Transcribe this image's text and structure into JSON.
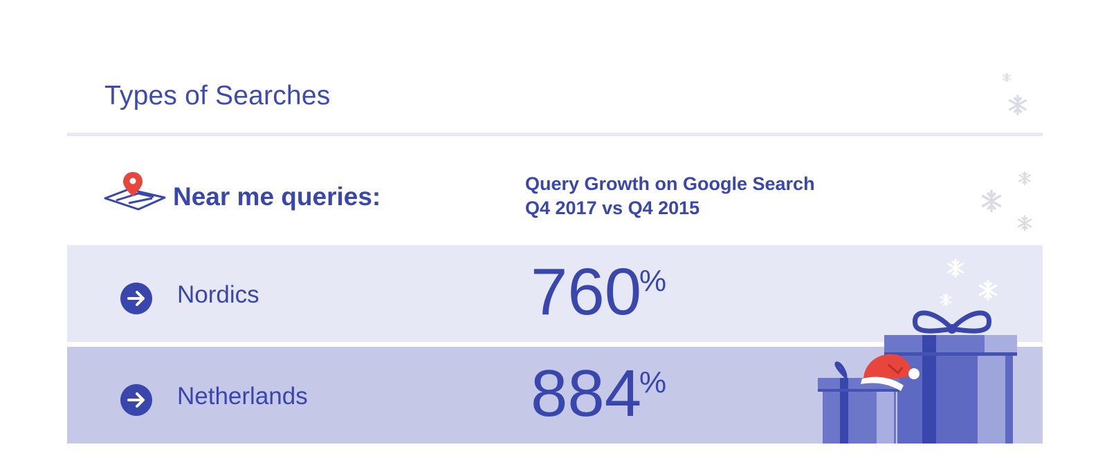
{
  "header": {
    "title": "Types of Searches"
  },
  "section": {
    "label": "Near me queries:",
    "growth_title_line1": "Query Growth on Google Search",
    "growth_title_line2": "Q4 2017 vs Q4 2015"
  },
  "rows": [
    {
      "region": "Nordics",
      "value": "760",
      "unit": "%"
    },
    {
      "region": "Netherlands",
      "value": "884",
      "unit": "%"
    }
  ],
  "icons": {
    "location": "map-pin-icon",
    "row_marker": "arrow-right-circle-icon",
    "decoration": [
      "snowflake-icon",
      "gift-box-icon",
      "santa-hat-icon"
    ]
  },
  "colors": {
    "primary": "#3947ad",
    "row_light": "#e7e8f6",
    "row_dark": "#c5c8e7",
    "pin_red": "#e8453c"
  }
}
